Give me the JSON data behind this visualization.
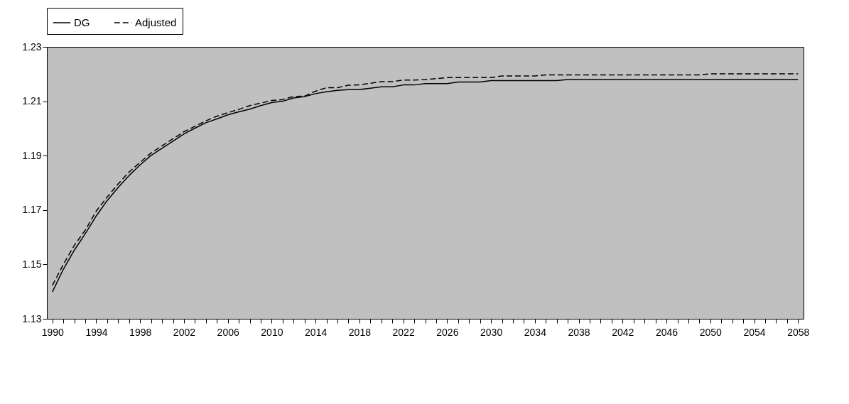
{
  "chart_data": {
    "type": "line",
    "x": [
      1990,
      1991,
      1992,
      1993,
      1994,
      1995,
      1996,
      1997,
      1998,
      1999,
      2000,
      2001,
      2002,
      2003,
      2004,
      2005,
      2006,
      2007,
      2008,
      2009,
      2010,
      2011,
      2012,
      2013,
      2014,
      2015,
      2016,
      2017,
      2018,
      2019,
      2020,
      2021,
      2022,
      2023,
      2024,
      2025,
      2026,
      2027,
      2028,
      2029,
      2030,
      2031,
      2032,
      2033,
      2034,
      2035,
      2036,
      2037,
      2038,
      2039,
      2040,
      2041,
      2042,
      2043,
      2044,
      2045,
      2046,
      2047,
      2048,
      2049,
      2050,
      2051,
      2052,
      2053,
      2054,
      2055,
      2056,
      2057,
      2058
    ],
    "series": [
      {
        "name": "DG",
        "color": "#000000",
        "line_style": "solid",
        "values": [
          1.1399,
          1.1482,
          1.1552,
          1.1613,
          1.1678,
          1.1735,
          1.1783,
          1.1827,
          1.1866,
          1.1901,
          1.1927,
          1.1953,
          1.198,
          1.2001,
          1.2021,
          1.2035,
          1.205,
          1.2061,
          1.2071,
          1.2084,
          1.2095,
          1.21,
          1.2112,
          1.2117,
          1.2128,
          1.2135,
          1.214,
          1.2143,
          1.2143,
          1.2148,
          1.2153,
          1.2153,
          1.216,
          1.216,
          1.2165,
          1.2165,
          1.2165,
          1.2171,
          1.2171,
          1.2171,
          1.2176,
          1.2176,
          1.2176,
          1.2176,
          1.2176,
          1.2176,
          1.2176,
          1.218,
          1.218,
          1.218,
          1.218,
          1.218,
          1.218,
          1.218,
          1.218,
          1.218,
          1.218,
          1.218,
          1.218,
          1.218,
          1.218,
          1.218,
          1.218,
          1.218,
          1.218,
          1.218,
          1.218,
          1.218,
          1.218
        ]
      },
      {
        "name": "Adjusted",
        "color": "#000000",
        "line_style": "dashed",
        "values": [
          1.1423,
          1.15,
          1.157,
          1.1626,
          1.1696,
          1.1748,
          1.1796,
          1.184,
          1.1875,
          1.191,
          1.1936,
          1.1962,
          1.1988,
          1.2008,
          1.2028,
          1.2045,
          1.2058,
          1.207,
          1.2084,
          1.2093,
          1.2103,
          1.2106,
          1.2118,
          1.2119,
          1.2137,
          1.215,
          1.215,
          1.2159,
          1.216,
          1.2166,
          1.2172,
          1.2172,
          1.2178,
          1.2178,
          1.218,
          1.2183,
          1.2187,
          1.2187,
          1.2187,
          1.2187,
          1.2187,
          1.2193,
          1.2193,
          1.2193,
          1.2193,
          1.2197,
          1.2197,
          1.2197,
          1.2197,
          1.2197,
          1.2197,
          1.2197,
          1.2197,
          1.2197,
          1.2197,
          1.2197,
          1.2197,
          1.2197,
          1.2197,
          1.2197,
          1.2201,
          1.2201,
          1.2201,
          1.2201,
          1.2201,
          1.2201,
          1.2201,
          1.2201,
          1.2201
        ]
      }
    ],
    "xlim": [
      1989.5,
      2058.5
    ],
    "xticks": [
      1990,
      {
        "value": 1991,
        "label": null
      },
      {
        "value": 1992,
        "label": null
      },
      {
        "value": 1993,
        "label": null
      },
      1994,
      {
        "value": 1995,
        "label": null
      },
      {
        "value": 1996,
        "label": null
      },
      {
        "value": 1997,
        "label": null
      },
      1998,
      {
        "value": 1999,
        "label": null
      },
      {
        "value": 2000,
        "label": null
      },
      {
        "value": 2001,
        "label": null
      },
      2002,
      {
        "value": 2003,
        "label": null
      },
      {
        "value": 2004,
        "label": null
      },
      {
        "value": 2005,
        "label": null
      },
      2006,
      {
        "value": 2007,
        "label": null
      },
      {
        "value": 2008,
        "label": null
      },
      {
        "value": 2009,
        "label": null
      },
      2010,
      {
        "value": 2011,
        "label": null
      },
      {
        "value": 2012,
        "label": null
      },
      {
        "value": 2013,
        "label": null
      },
      2014,
      {
        "value": 2015,
        "label": null
      },
      {
        "value": 2016,
        "label": null
      },
      {
        "value": 2017,
        "label": null
      },
      2018,
      {
        "value": 2019,
        "label": null
      },
      {
        "value": 2020,
        "label": null
      },
      {
        "value": 2021,
        "label": null
      },
      2022,
      {
        "value": 2023,
        "label": null
      },
      {
        "value": 2024,
        "label": null
      },
      {
        "value": 2025,
        "label": null
      },
      2026,
      {
        "value": 2027,
        "label": null
      },
      {
        "value": 2028,
        "label": null
      },
      {
        "value": 2029,
        "label": null
      },
      2030,
      {
        "value": 2031,
        "label": null
      },
      {
        "value": 2032,
        "label": null
      },
      {
        "value": 2033,
        "label": null
      },
      2034,
      {
        "value": 2035,
        "label": null
      },
      {
        "value": 2036,
        "label": null
      },
      {
        "value": 2037,
        "label": null
      },
      2038,
      {
        "value": 2039,
        "label": null
      },
      {
        "value": 2040,
        "label": null
      },
      {
        "value": 2041,
        "label": null
      },
      2042,
      {
        "value": 2043,
        "label": null
      },
      {
        "value": 2044,
        "label": null
      },
      {
        "value": 2045,
        "label": null
      },
      2046,
      {
        "value": 2047,
        "label": null
      },
      {
        "value": 2048,
        "label": null
      },
      {
        "value": 2049,
        "label": null
      },
      2050,
      {
        "value": 2051,
        "label": null
      },
      {
        "value": 2052,
        "label": null
      },
      {
        "value": 2053,
        "label": null
      },
      2054,
      {
        "value": 2055,
        "label": null
      },
      {
        "value": 2056,
        "label": null
      },
      {
        "value": 2057,
        "label": null
      },
      2058
    ],
    "ylim": [
      1.13,
      1.23
    ],
    "yticks": [
      1.13,
      1.15,
      1.17,
      1.19,
      1.21,
      1.23
    ],
    "grid": false,
    "legend": "top",
    "marker": "none"
  }
}
